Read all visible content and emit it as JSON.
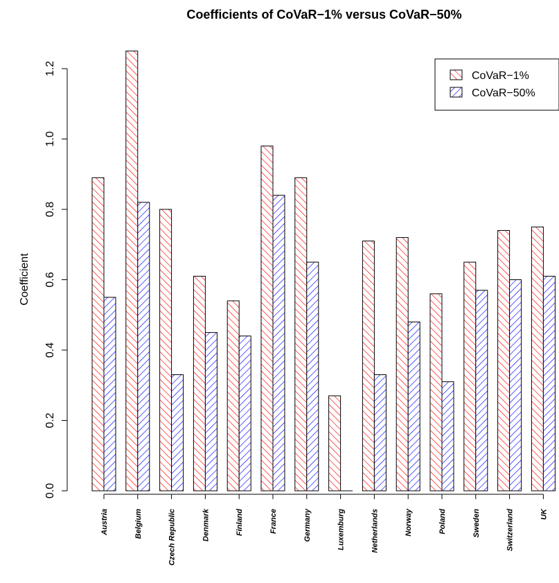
{
  "chart_data": {
    "type": "bar",
    "title": "Coefficients of CoVaR−1% versus CoVaR−50%",
    "xlabel": "",
    "ylabel": "Coefficient",
    "ylim": [
      0,
      1.25
    ],
    "yticks": [
      0.0,
      0.2,
      0.4,
      0.6,
      0.8,
      1.0,
      1.2
    ],
    "ytick_labels": [
      "0.0",
      "0.2",
      "0.4",
      "0.6",
      "0.8",
      "1.0",
      "1.2"
    ],
    "categories": [
      "Austria",
      "Belgium",
      "Czech Republic",
      "Denmark",
      "Finland",
      "France",
      "Germany",
      "Luxemburg",
      "Netherlands",
      "Norway",
      "Poland",
      "Sweden",
      "Switzerland",
      "UK"
    ],
    "series": [
      {
        "name": "CoVaR−1%",
        "color": "#ff0000",
        "values": [
          0.89,
          1.25,
          0.8,
          0.61,
          0.54,
          0.98,
          0.89,
          0.27,
          0.71,
          0.72,
          0.56,
          0.65,
          0.74,
          0.75
        ]
      },
      {
        "name": "CoVaR−50%",
        "color": "#0000ff",
        "values": [
          0.55,
          0.82,
          0.33,
          0.45,
          0.44,
          0.84,
          0.65,
          0.0,
          0.33,
          0.48,
          0.31,
          0.57,
          0.6,
          0.61
        ]
      }
    ],
    "legend_position": "top-right",
    "pattern": "diagonal hatching",
    "grid": false
  }
}
